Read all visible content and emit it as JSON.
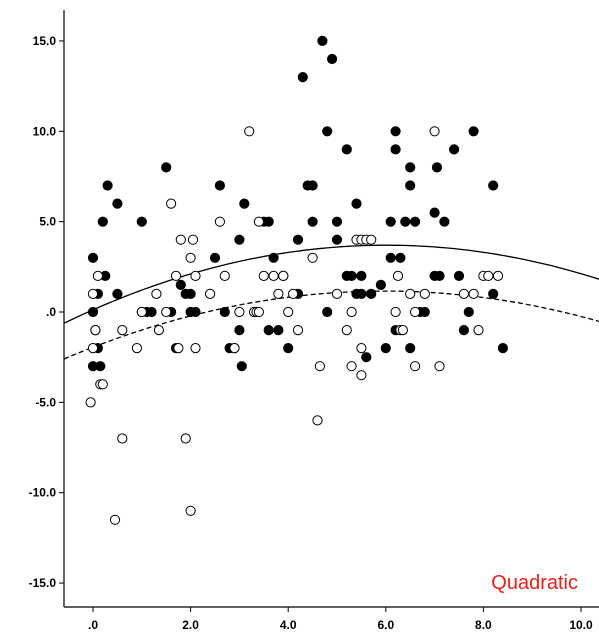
{
  "chart_data": {
    "type": "scatter",
    "title": "",
    "xlabel": "",
    "ylabel": "",
    "xlim": [
      -0.5,
      10.5
    ],
    "ylim": [
      -16.2,
      16.6
    ],
    "xticks": [
      0,
      2,
      4,
      6,
      8,
      10
    ],
    "xtick_labels": [
      ".0",
      "2.0",
      "4.0",
      "6.0",
      "8.0",
      "10.0"
    ],
    "yticks": [
      15,
      10,
      5,
      0,
      -5,
      -10,
      -15
    ],
    "ytick_labels": [
      "15.0",
      "10.0",
      "5.0",
      ".0",
      "-5.0",
      "-10.0",
      "-15.0"
    ],
    "grid": false,
    "annotation": "Quadratic",
    "series": [
      {
        "marker": "filled-circle",
        "points": [
          [
            0.0,
            3.0
          ],
          [
            0.0,
            0.0
          ],
          [
            0.05,
            -1.0
          ],
          [
            0.0,
            -3.0
          ],
          [
            0.1,
            1.0
          ],
          [
            0.1,
            -2.0
          ],
          [
            0.15,
            -3.0
          ],
          [
            0.2,
            5.0
          ],
          [
            0.25,
            2.0
          ],
          [
            0.3,
            7.0
          ],
          [
            0.5,
            6.0
          ],
          [
            0.5,
            1.0
          ],
          [
            1.0,
            5.0
          ],
          [
            1.0,
            0.0
          ],
          [
            1.1,
            0.0
          ],
          [
            1.2,
            0.0
          ],
          [
            1.5,
            8.0
          ],
          [
            1.6,
            0.0
          ],
          [
            1.7,
            -2.0
          ],
          [
            1.8,
            1.5
          ],
          [
            1.9,
            1.0
          ],
          [
            2.0,
            0.0
          ],
          [
            2.0,
            1.0
          ],
          [
            2.1,
            0.0
          ],
          [
            2.5,
            3.0
          ],
          [
            2.6,
            7.0
          ],
          [
            2.7,
            0.0
          ],
          [
            2.8,
            -2.0
          ],
          [
            2.9,
            -2.0
          ],
          [
            3.0,
            4.0
          ],
          [
            3.0,
            -1.0
          ],
          [
            3.05,
            -3.0
          ],
          [
            3.1,
            6.0
          ],
          [
            3.5,
            5.0
          ],
          [
            3.6,
            5.0
          ],
          [
            3.6,
            -1.0
          ],
          [
            3.7,
            3.0
          ],
          [
            3.8,
            -1.0
          ],
          [
            3.9,
            2.0
          ],
          [
            4.0,
            -2.0
          ],
          [
            4.2,
            4.0
          ],
          [
            4.2,
            1.0
          ],
          [
            4.3,
            13.0
          ],
          [
            4.4,
            7.0
          ],
          [
            4.5,
            7.0
          ],
          [
            4.5,
            5.0
          ],
          [
            4.7,
            15.0
          ],
          [
            4.8,
            10.0
          ],
          [
            4.8,
            0.0
          ],
          [
            4.9,
            14.0
          ],
          [
            5.0,
            4.0
          ],
          [
            5.0,
            5.0
          ],
          [
            5.2,
            9.0
          ],
          [
            5.2,
            2.0
          ],
          [
            5.3,
            2.0
          ],
          [
            5.4,
            6.0
          ],
          [
            5.4,
            1.0
          ],
          [
            5.5,
            2.0
          ],
          [
            5.5,
            1.0
          ],
          [
            5.6,
            -2.5
          ],
          [
            5.7,
            1.0
          ],
          [
            5.9,
            1.5
          ],
          [
            6.0,
            -2.0
          ],
          [
            6.1,
            5.0
          ],
          [
            6.1,
            3.0
          ],
          [
            6.2,
            9.0
          ],
          [
            6.2,
            10.0
          ],
          [
            6.2,
            -1.0
          ],
          [
            6.3,
            3.0
          ],
          [
            6.4,
            5.0
          ],
          [
            6.5,
            7.0
          ],
          [
            6.5,
            8.0
          ],
          [
            6.5,
            -2.0
          ],
          [
            6.6,
            5.0
          ],
          [
            6.7,
            0.0
          ],
          [
            6.8,
            0.0
          ],
          [
            7.0,
            2.0
          ],
          [
            7.0,
            5.5
          ],
          [
            7.05,
            8.0
          ],
          [
            7.1,
            2.0
          ],
          [
            7.2,
            5.0
          ],
          [
            7.4,
            9.0
          ],
          [
            7.5,
            2.0
          ],
          [
            7.6,
            -1.0
          ],
          [
            7.7,
            0.0
          ],
          [
            7.8,
            10.0
          ],
          [
            8.2,
            1.0
          ],
          [
            8.2,
            7.0
          ],
          [
            8.4,
            -2.0
          ]
        ]
      },
      {
        "marker": "open-circle",
        "points": [
          [
            0.0,
            1.0
          ],
          [
            -0.05,
            -5.0
          ],
          [
            0.0,
            -2.0
          ],
          [
            0.05,
            -1.0
          ],
          [
            0.1,
            2.0
          ],
          [
            0.15,
            -4.0
          ],
          [
            0.2,
            -4.0
          ],
          [
            0.45,
            -11.5
          ],
          [
            0.6,
            -7.0
          ],
          [
            0.6,
            -1.0
          ],
          [
            0.9,
            -2.0
          ],
          [
            1.0,
            0.0
          ],
          [
            1.3,
            1.0
          ],
          [
            1.35,
            -1.0
          ],
          [
            1.5,
            0.0
          ],
          [
            1.6,
            6.0
          ],
          [
            1.7,
            2.0
          ],
          [
            1.75,
            -2.0
          ],
          [
            1.8,
            4.0
          ],
          [
            1.9,
            -7.0
          ],
          [
            2.0,
            -11.0
          ],
          [
            2.0,
            3.0
          ],
          [
            2.05,
            4.0
          ],
          [
            2.1,
            2.0
          ],
          [
            2.1,
            -2.0
          ],
          [
            2.4,
            1.0
          ],
          [
            2.6,
            5.0
          ],
          [
            2.7,
            2.0
          ],
          [
            2.9,
            -2.0
          ],
          [
            3.0,
            0.0
          ],
          [
            3.2,
            10.0
          ],
          [
            3.3,
            0.0
          ],
          [
            3.35,
            0.0
          ],
          [
            3.4,
            0.0
          ],
          [
            3.4,
            5.0
          ],
          [
            3.5,
            2.0
          ],
          [
            3.7,
            2.0
          ],
          [
            3.8,
            1.0
          ],
          [
            3.9,
            2.0
          ],
          [
            4.0,
            0.0
          ],
          [
            4.1,
            1.0
          ],
          [
            4.2,
            -1.0
          ],
          [
            4.5,
            3.0
          ],
          [
            4.6,
            -6.0
          ],
          [
            4.65,
            -3.0
          ],
          [
            5.0,
            1.0
          ],
          [
            5.2,
            -1.0
          ],
          [
            5.3,
            -3.0
          ],
          [
            5.4,
            4.0
          ],
          [
            5.5,
            4.0
          ],
          [
            5.5,
            -2.0
          ],
          [
            5.5,
            -3.5
          ],
          [
            5.6,
            4.0
          ],
          [
            5.7,
            4.0
          ],
          [
            6.2,
            0.0
          ],
          [
            6.3,
            -1.0
          ],
          [
            6.35,
            -1.0
          ],
          [
            6.5,
            1.0
          ],
          [
            6.6,
            0.0
          ],
          [
            6.6,
            -3.0
          ],
          [
            6.8,
            1.0
          ],
          [
            7.0,
            10.0
          ],
          [
            7.1,
            -3.0
          ],
          [
            7.6,
            1.0
          ],
          [
            7.8,
            1.0
          ],
          [
            7.9,
            -1.0
          ],
          [
            8.0,
            2.0
          ],
          [
            8.1,
            2.0
          ],
          [
            8.3,
            2.0
          ],
          [
            6.25,
            2.0
          ],
          [
            5.3,
            0.0
          ]
        ]
      }
    ],
    "fit_lines": [
      {
        "type": "quadratic",
        "style": "solid",
        "coefficients": [
          0.12,
          1.19,
          -0.099
        ]
      },
      {
        "type": "quadratic",
        "style": "dashed",
        "coefficients": [
          -1.95,
          1.04,
          -0.087
        ]
      }
    ]
  }
}
